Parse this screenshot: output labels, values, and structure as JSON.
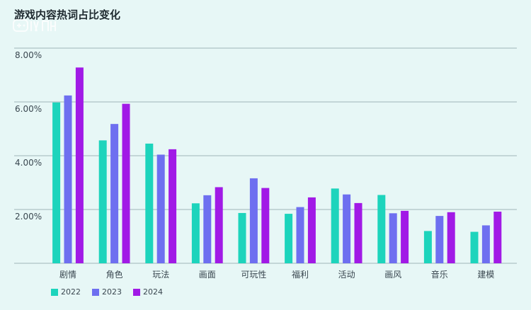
{
  "colors": {
    "s2022": "#1dd4bc",
    "s2023": "#6e6ff0",
    "s2024": "#a11ae6"
  },
  "chart_data": {
    "type": "bar",
    "title": "游戏内容热词占比变化",
    "xlabel": "",
    "ylabel": "",
    "ylim": [
      0,
      8
    ],
    "yticks": [
      2,
      4,
      6,
      8
    ],
    "ytick_labels": [
      "2.00%",
      "4.00%",
      "6.00%",
      "8.00%"
    ],
    "grid": true,
    "legend_position": "bottom-left",
    "categories": [
      "剧情",
      "角色",
      "玩法",
      "画面",
      "可玩性",
      "福利",
      "活动",
      "画风",
      "音乐",
      "建模"
    ],
    "series": [
      {
        "name": "2022",
        "values": [
          5.98,
          4.57,
          4.45,
          2.23,
          1.87,
          1.84,
          2.78,
          2.54,
          1.2,
          1.17
        ]
      },
      {
        "name": "2023",
        "values": [
          6.24,
          5.18,
          4.04,
          2.53,
          3.16,
          2.09,
          2.56,
          1.86,
          1.76,
          1.41
        ]
      },
      {
        "name": "2024",
        "values": [
          7.28,
          5.93,
          4.24,
          2.83,
          2.8,
          2.45,
          2.24,
          1.95,
          1.9,
          1.92
        ]
      }
    ]
  }
}
